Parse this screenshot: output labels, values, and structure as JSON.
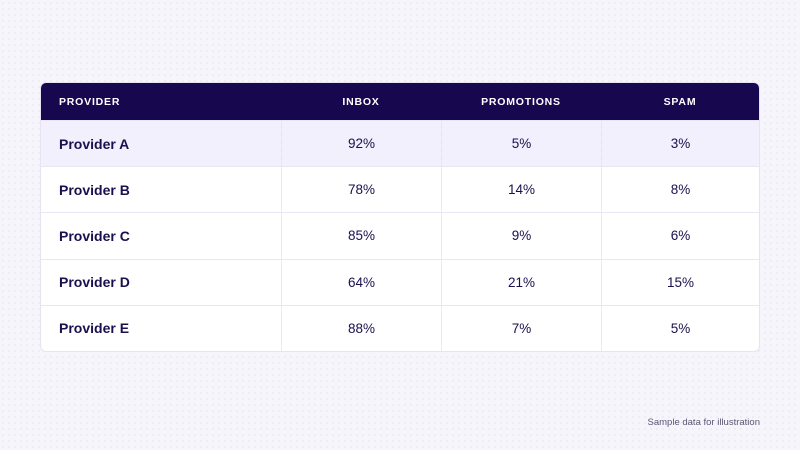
{
  "chart_data": {
    "type": "table",
    "columns": [
      "PROVIDER",
      "INBOX",
      "PROMOTIONS",
      "SPAM"
    ],
    "rows": [
      [
        "Provider A",
        "92%",
        "5%",
        "3%"
      ],
      [
        "Provider B",
        "78%",
        "14%",
        "8%"
      ],
      [
        "Provider C",
        "85%",
        "9%",
        "6%"
      ],
      [
        "Provider D",
        "64%",
        "21%",
        "15%"
      ],
      [
        "Provider E",
        "88%",
        "7%",
        "5%"
      ]
    ],
    "highlighted_row": 0
  },
  "footnote": "Sample data for illustration",
  "colors": {
    "header_bg": "#17074f",
    "header_text": "#ffffff",
    "body_text": "#1b0f4d",
    "highlight_bg": "#f1f0fc",
    "page_bg": "#f6f5fb"
  }
}
